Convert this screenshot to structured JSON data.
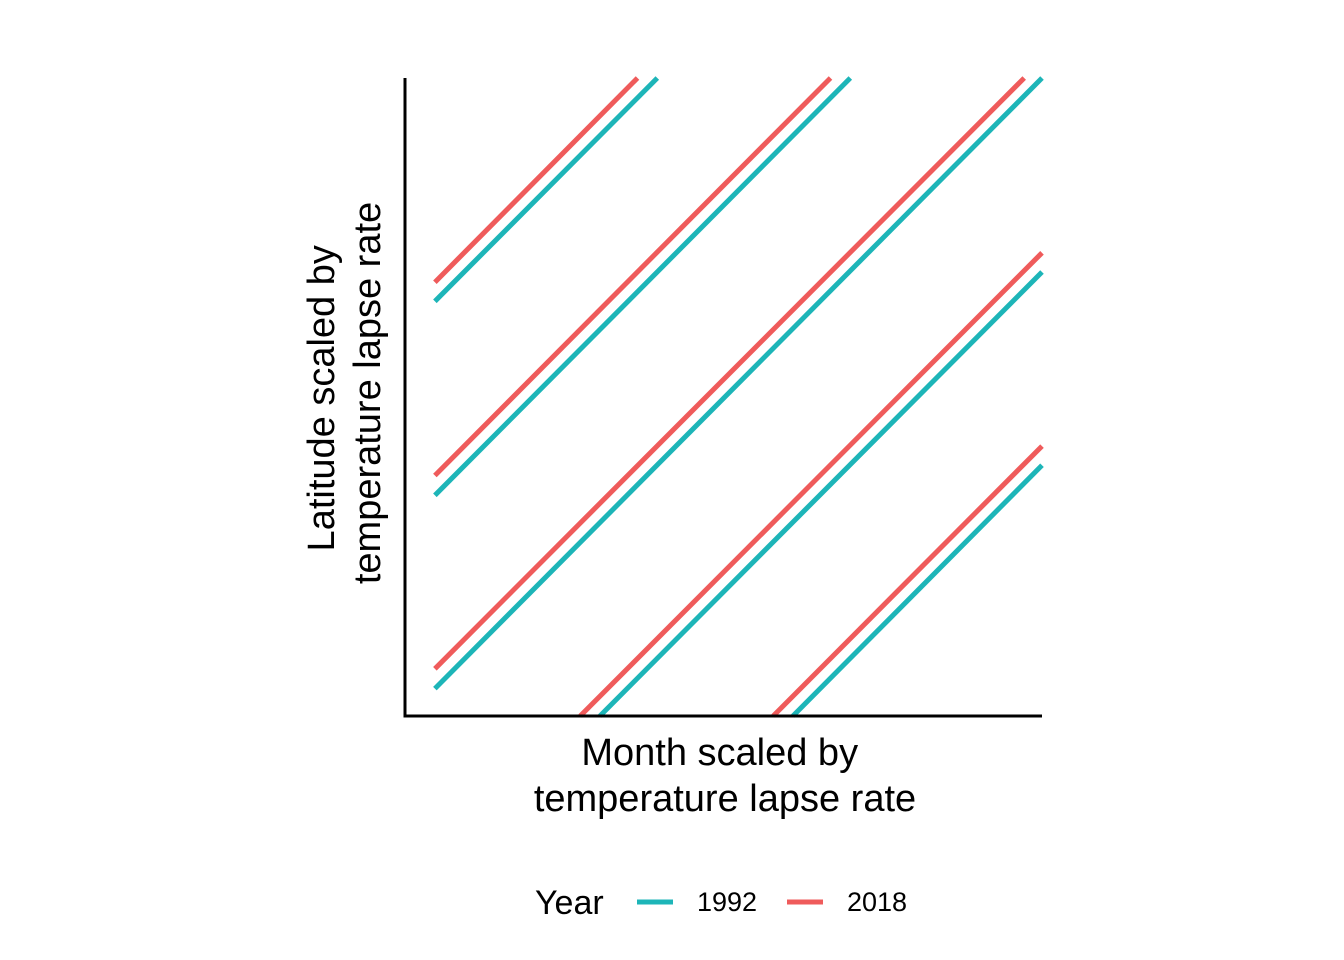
{
  "chart_data": {
    "type": "line",
    "title": "",
    "xlabel": [
      "Month scaled by",
      "temperature lapse rate"
    ],
    "ylabel": [
      "Latitude scaled by",
      "temperature lapse rate"
    ],
    "xlim": [
      0,
      10
    ],
    "ylim": [
      0,
      10
    ],
    "x_ticks_visible": false,
    "y_ticks_visible": false,
    "grid": false,
    "legend": {
      "title": "Year",
      "position": "bottom",
      "entries": [
        "1992",
        "2018"
      ]
    },
    "colors": {
      "1992": "#1DB5B8",
      "2018": "#EF5B5B"
    },
    "series": [
      {
        "name": "1992",
        "color": "#1DB5B8",
        "lines": [
          {
            "x": [
              0.47,
              3.96
            ],
            "y": [
              6.5,
              10
            ]
          },
          {
            "x": [
              0.47,
              6.99
            ],
            "y": [
              3.46,
              10
            ]
          },
          {
            "x": [
              0.47,
              10.0
            ],
            "y": [
              0.43,
              10
            ]
          },
          {
            "x": [
              3.06,
              10.0
            ],
            "y": [
              0.0,
              6.96
            ]
          },
          {
            "x": [
              6.09,
              10.0
            ],
            "y": [
              0.0,
              3.93
            ]
          }
        ]
      },
      {
        "name": "2018",
        "color": "#EF5B5B",
        "lines": [
          {
            "x": [
              0.47,
              3.65
            ],
            "y": [
              6.8,
              10
            ]
          },
          {
            "x": [
              0.47,
              6.68
            ],
            "y": [
              3.77,
              10
            ]
          },
          {
            "x": [
              0.47,
              9.72
            ],
            "y": [
              0.74,
              10
            ]
          },
          {
            "x": [
              2.75,
              10.0
            ],
            "y": [
              0.0,
              7.26
            ]
          },
          {
            "x": [
              5.78,
              10.0
            ],
            "y": [
              0.0,
              4.23
            ]
          }
        ]
      }
    ]
  }
}
